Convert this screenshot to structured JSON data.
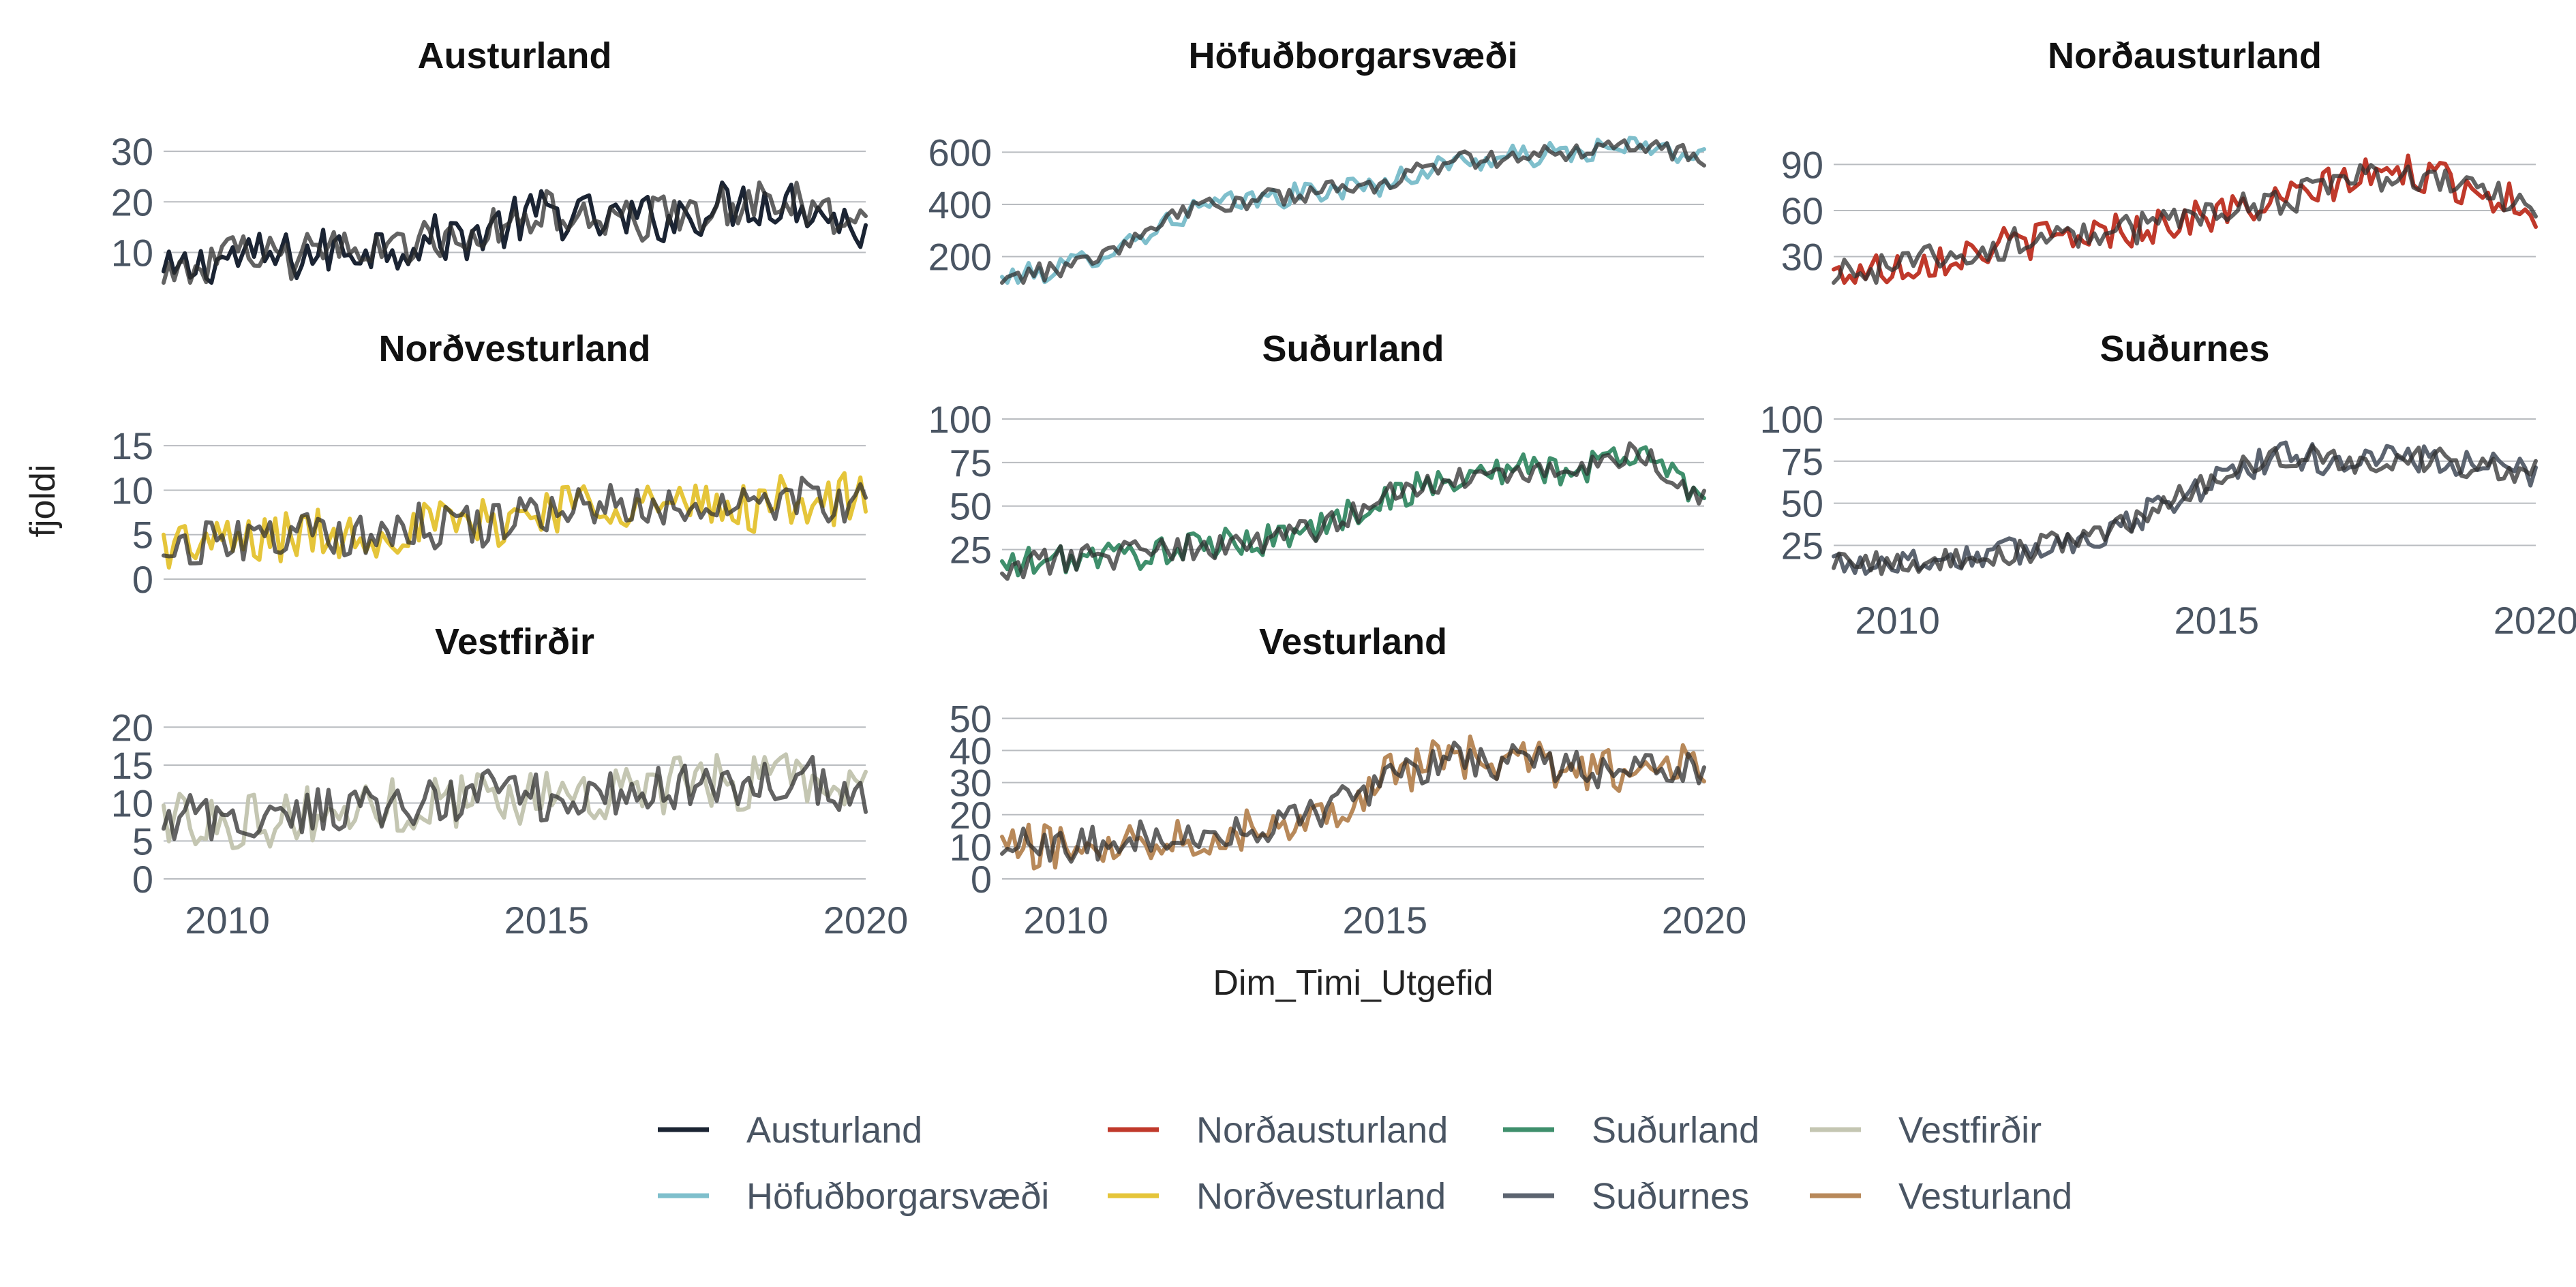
{
  "chart_data": {
    "type": "line",
    "facet_note": "small multiples: one panel per region; each panel draws the panel region's series plus a dark overlay line",
    "xlabel": "Dim_Timi_Utgefid",
    "ylabel": "fjoldi",
    "x_range": [
      2009.0,
      2020.0
    ],
    "x_ticks": [
      2010,
      2015,
      2020
    ],
    "grid": "horizontal major lines on",
    "legend_placement": "bottom",
    "legend": [
      {
        "name": "Austurland",
        "color": "#1b2433"
      },
      {
        "name": "Höfuðborgarsvæði",
        "color": "#7fbfcc"
      },
      {
        "name": "Norðausturland",
        "color": "#c0392b"
      },
      {
        "name": "Norðvesturland",
        "color": "#e5c53a"
      },
      {
        "name": "Suðurland",
        "color": "#3f8f6c"
      },
      {
        "name": "Suðurnes",
        "color": "#5c6470"
      },
      {
        "name": "Vestfirðir",
        "color": "#c4c6b2"
      },
      {
        "name": "Vesturland",
        "color": "#b8895a"
      }
    ],
    "overlay_color": "#2f2f2f",
    "panels": [
      {
        "title": "Austurland",
        "color": "#1b2433",
        "y_range": [
          4,
          35
        ],
        "y_ticks": [
          10,
          20,
          30
        ],
        "x_labels": false,
        "control_points": [
          [
            2009.0,
            5
          ],
          [
            2010.0,
            9
          ],
          [
            2011.0,
            9
          ],
          [
            2012.0,
            11
          ],
          [
            2013.0,
            12
          ],
          [
            2014.0,
            14
          ],
          [
            2015.0,
            18
          ],
          [
            2016.0,
            16
          ],
          [
            2017.0,
            17
          ],
          [
            2018.0,
            20
          ],
          [
            2019.0,
            20
          ],
          [
            2020.0,
            14
          ]
        ],
        "amplitude": 5
      },
      {
        "title": "Höfuðborgarsvæði",
        "color": "#7fbfcc",
        "y_range": [
          100,
          700
        ],
        "y_ticks": [
          200,
          400,
          600
        ],
        "x_labels": false,
        "control_points": [
          [
            2009.0,
            110
          ],
          [
            2010.0,
            160
          ],
          [
            2011.0,
            260
          ],
          [
            2012.0,
            380
          ],
          [
            2013.0,
            420
          ],
          [
            2014.0,
            450
          ],
          [
            2015.0,
            480
          ],
          [
            2016.0,
            560
          ],
          [
            2017.0,
            580
          ],
          [
            2018.0,
            600
          ],
          [
            2019.0,
            620
          ],
          [
            2020.0,
            580
          ]
        ],
        "amplitude": 45
      },
      {
        "title": "Norðausturland",
        "color": "#c0392b",
        "y_range": [
          13,
          115
        ],
        "y_ticks": [
          30,
          60,
          90
        ],
        "x_labels": false,
        "control_points": [
          [
            2009.0,
            18
          ],
          [
            2010.0,
            24
          ],
          [
            2011.0,
            32
          ],
          [
            2012.0,
            40
          ],
          [
            2013.0,
            45
          ],
          [
            2014.0,
            50
          ],
          [
            2015.0,
            58
          ],
          [
            2016.0,
            65
          ],
          [
            2017.0,
            80
          ],
          [
            2018.0,
            85
          ],
          [
            2019.0,
            75
          ],
          [
            2020.0,
            60
          ]
        ],
        "amplitude": 12
      },
      {
        "title": "Norðvesturland",
        "color": "#e5c53a",
        "y_range": [
          0,
          18
        ],
        "y_ticks": [
          0,
          5,
          10,
          15
        ],
        "x_labels": false,
        "control_points": [
          [
            2009.0,
            4
          ],
          [
            2010.0,
            4
          ],
          [
            2011.0,
            5
          ],
          [
            2012.0,
            5
          ],
          [
            2013.0,
            6
          ],
          [
            2014.0,
            6
          ],
          [
            2015.0,
            8
          ],
          [
            2016.0,
            9
          ],
          [
            2017.0,
            8
          ],
          [
            2018.0,
            8
          ],
          [
            2019.0,
            9
          ],
          [
            2020.0,
            9
          ]
        ],
        "amplitude": 3
      },
      {
        "title": "Suðurland",
        "color": "#3f8f6c",
        "y_range": [
          8,
          100
        ],
        "y_ticks": [
          25,
          50,
          75,
          100
        ],
        "x_labels": false,
        "control_points": [
          [
            2009.0,
            15
          ],
          [
            2010.0,
            20
          ],
          [
            2011.0,
            22
          ],
          [
            2012.0,
            26
          ],
          [
            2013.0,
            30
          ],
          [
            2014.0,
            38
          ],
          [
            2015.0,
            55
          ],
          [
            2016.0,
            65
          ],
          [
            2017.0,
            72
          ],
          [
            2018.0,
            70
          ],
          [
            2019.0,
            82
          ],
          [
            2020.0,
            55
          ]
        ],
        "amplitude": 9
      },
      {
        "title": "Suðurnes",
        "color": "#5c6470",
        "y_range": [
          5,
          100
        ],
        "y_ticks": [
          25,
          50,
          75,
          100
        ],
        "x_labels": true,
        "control_points": [
          [
            2009.0,
            15
          ],
          [
            2010.0,
            15
          ],
          [
            2011.0,
            18
          ],
          [
            2012.0,
            22
          ],
          [
            2013.0,
            30
          ],
          [
            2014.0,
            45
          ],
          [
            2015.0,
            65
          ],
          [
            2016.0,
            78
          ],
          [
            2017.0,
            75
          ],
          [
            2018.0,
            78
          ],
          [
            2019.0,
            72
          ],
          [
            2020.0,
            68
          ]
        ],
        "amplitude": 9
      },
      {
        "title": "Vestfirðir",
        "color": "#c4c6b2",
        "y_range": [
          0,
          22
        ],
        "y_ticks": [
          0,
          5,
          10,
          15,
          20
        ],
        "x_labels": true,
        "control_points": [
          [
            2009.0,
            8
          ],
          [
            2010.0,
            8
          ],
          [
            2011.0,
            8
          ],
          [
            2012.0,
            9
          ],
          [
            2013.0,
            10
          ],
          [
            2014.0,
            11
          ],
          [
            2015.0,
            11
          ],
          [
            2016.0,
            12
          ],
          [
            2017.0,
            12
          ],
          [
            2018.0,
            13
          ],
          [
            2019.0,
            14
          ],
          [
            2020.0,
            11
          ]
        ],
        "amplitude": 4
      },
      {
        "title": "Vesturland",
        "color": "#b8895a",
        "y_range": [
          0,
          52
        ],
        "y_ticks": [
          0,
          10,
          20,
          30,
          40,
          50
        ],
        "x_labels": true,
        "control_points": [
          [
            2009.0,
            10
          ],
          [
            2010.0,
            10
          ],
          [
            2011.0,
            12
          ],
          [
            2012.0,
            14
          ],
          [
            2013.0,
            16
          ],
          [
            2014.0,
            20
          ],
          [
            2015.0,
            32
          ],
          [
            2016.0,
            38
          ],
          [
            2017.0,
            36
          ],
          [
            2018.0,
            35
          ],
          [
            2019.0,
            33
          ],
          [
            2020.0,
            36
          ]
        ],
        "amplitude": 7
      }
    ]
  }
}
